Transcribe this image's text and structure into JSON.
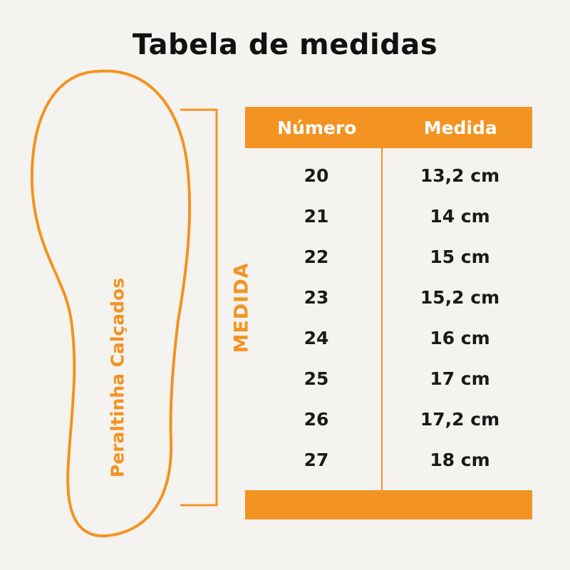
{
  "title": "Tabela de medidas",
  "insole_label": "Peraltinha Calçados",
  "measure_label": "MEDIDA",
  "colors": {
    "accent": "#f39321",
    "background": "#f4f3ef",
    "text": "#1a1a1a"
  },
  "table": {
    "headers": [
      "Número",
      "Medida"
    ],
    "rows": [
      {
        "numero": "20",
        "medida": "13,2 cm"
      },
      {
        "numero": "21",
        "medida": "14 cm"
      },
      {
        "numero": "22",
        "medida": "15 cm"
      },
      {
        "numero": "23",
        "medida": "15,2 cm"
      },
      {
        "numero": "24",
        "medida": "16 cm"
      },
      {
        "numero": "25",
        "medida": "17 cm"
      },
      {
        "numero": "26",
        "medida": "17,2 cm"
      },
      {
        "numero": "27",
        "medida": "18 cm"
      }
    ]
  }
}
